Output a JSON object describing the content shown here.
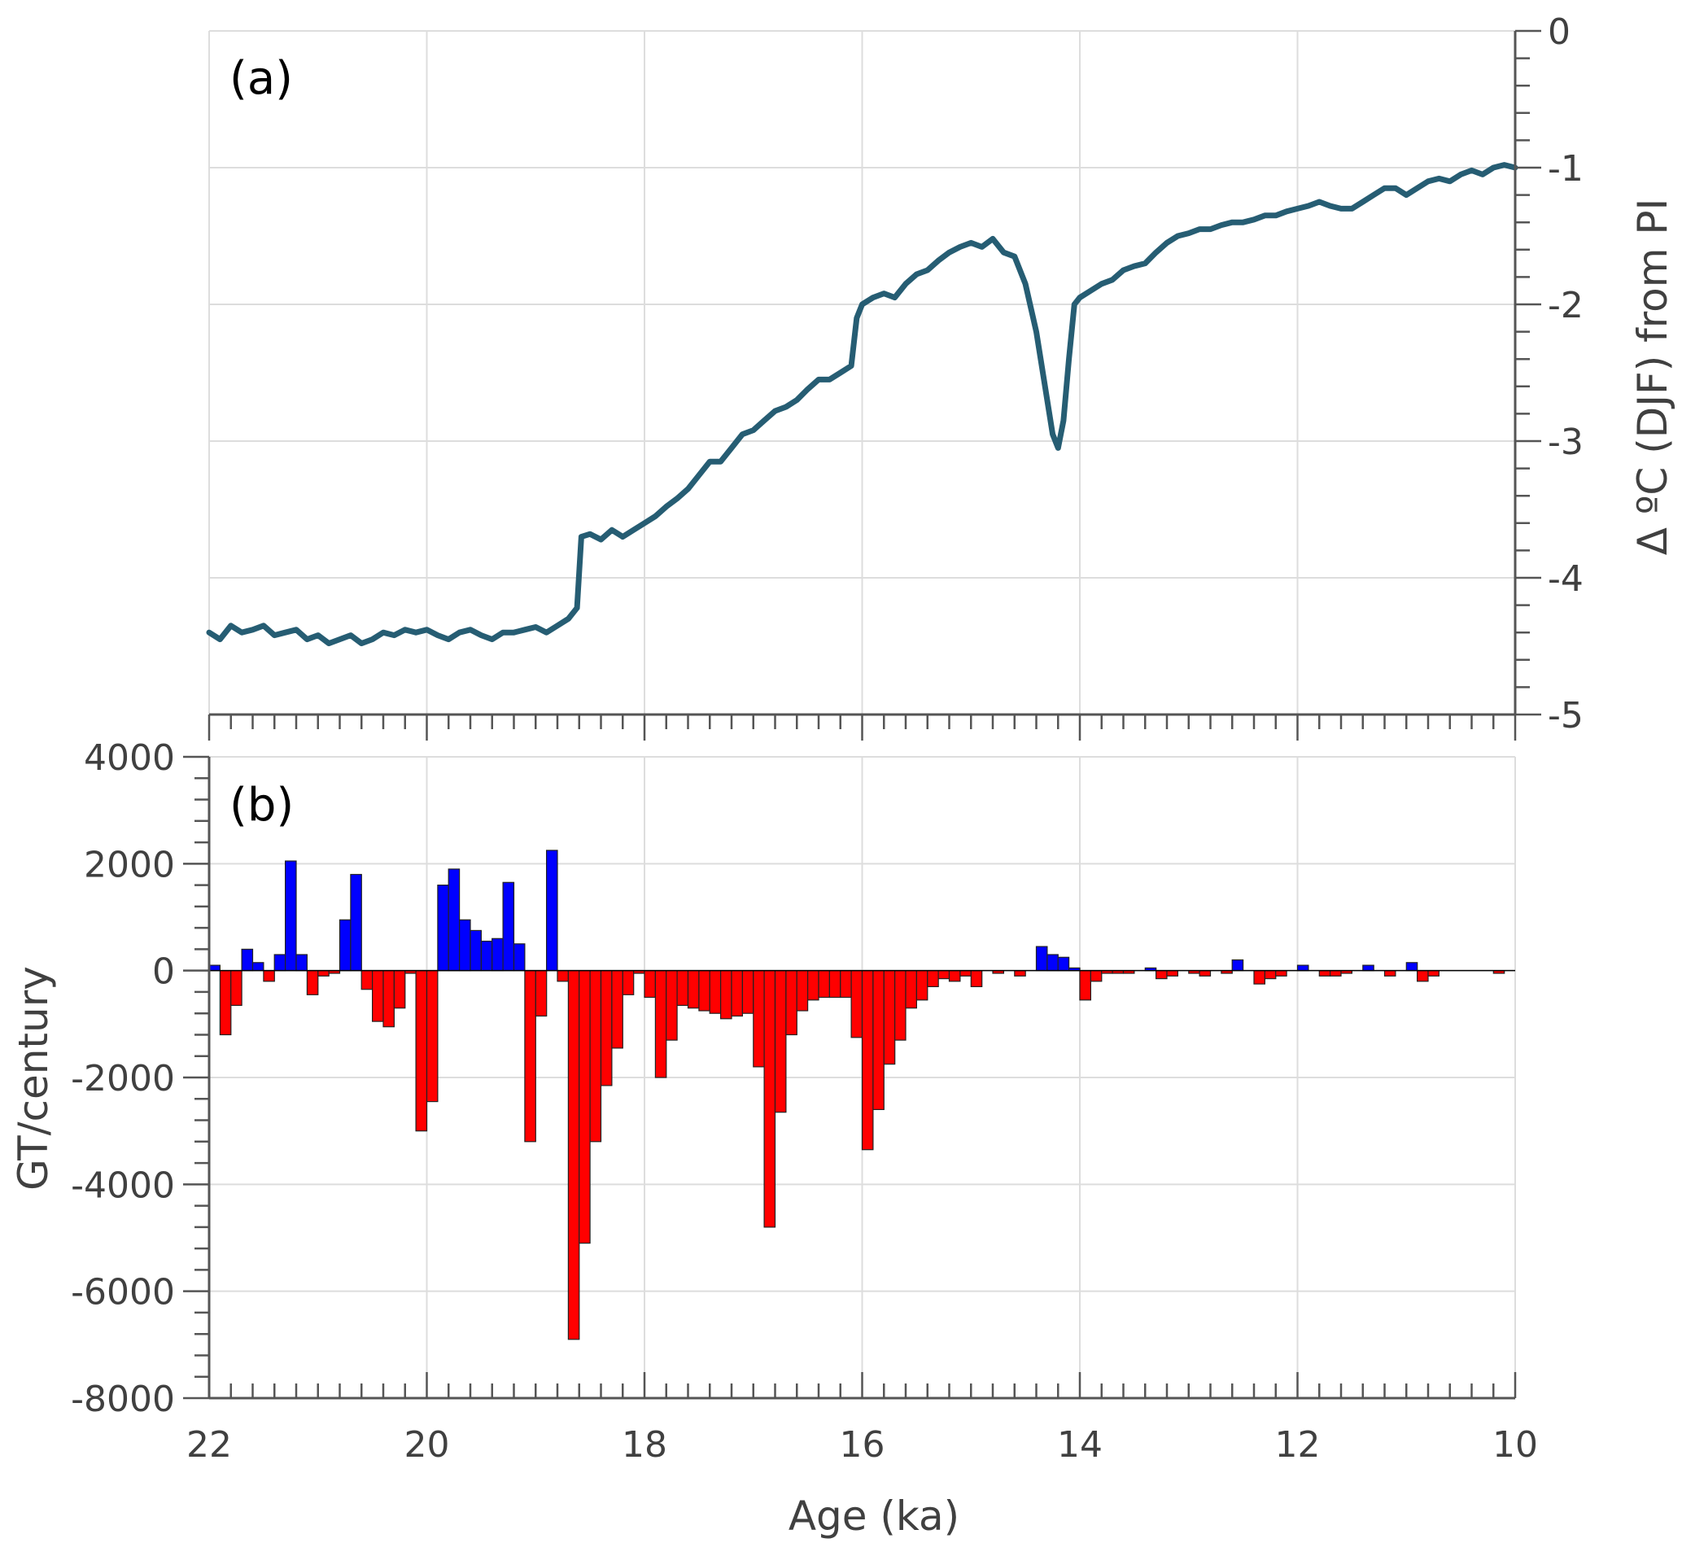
{
  "colors": {
    "line": "#265d73",
    "positive_bar": "#0000ff",
    "negative_bar": "#ff0000",
    "grid": "#dddddd",
    "axis": "#555555",
    "text": "#404040"
  },
  "chart_data": [
    {
      "type": "line",
      "panel_label": "(a)",
      "xlabel": "",
      "ylabel": "Δ ºC (DJF) from PI",
      "y_axis_side": "right",
      "xlim": [
        22,
        10
      ],
      "ylim": [
        -5,
        0
      ],
      "xticks": [
        22,
        20,
        18,
        16,
        14,
        12,
        10
      ],
      "yticks": [
        0,
        -1,
        -2,
        -3,
        -4,
        -5
      ],
      "ytick_labels": [
        "0",
        "-1",
        "-2",
        "-3",
        "-4",
        "-5"
      ],
      "grid": true,
      "x_reversed": true,
      "series": [
        {
          "x": [
            22.0,
            21.9,
            21.8,
            21.7,
            21.6,
            21.5,
            21.4,
            21.3,
            21.2,
            21.1,
            21.0,
            20.9,
            20.8,
            20.7,
            20.6,
            20.5,
            20.4,
            20.3,
            20.2,
            20.1,
            20.0,
            19.9,
            19.8,
            19.7,
            19.6,
            19.5,
            19.4,
            19.3,
            19.2,
            19.1,
            19.0,
            18.9,
            18.8,
            18.7,
            18.62,
            18.58,
            18.5,
            18.4,
            18.3,
            18.2,
            18.1,
            18.0,
            17.9,
            17.8,
            17.7,
            17.6,
            17.5,
            17.4,
            17.3,
            17.2,
            17.1,
            17.0,
            16.9,
            16.8,
            16.7,
            16.6,
            16.5,
            16.4,
            16.3,
            16.2,
            16.1,
            16.05,
            16.0,
            15.9,
            15.8,
            15.7,
            15.6,
            15.5,
            15.4,
            15.3,
            15.2,
            15.1,
            15.0,
            14.9,
            14.8,
            14.7,
            14.6,
            14.5,
            14.4,
            14.3,
            14.25,
            14.2,
            14.15,
            14.1,
            14.05,
            14.0,
            13.9,
            13.8,
            13.7,
            13.6,
            13.5,
            13.4,
            13.3,
            13.2,
            13.1,
            13.0,
            12.9,
            12.8,
            12.7,
            12.6,
            12.5,
            12.4,
            12.3,
            12.2,
            12.1,
            12.0,
            11.9,
            11.8,
            11.7,
            11.6,
            11.5,
            11.4,
            11.3,
            11.2,
            11.1,
            11.0,
            10.9,
            10.8,
            10.7,
            10.6,
            10.5,
            10.4,
            10.3,
            10.2,
            10.1,
            10.0
          ],
          "values": [
            -4.4,
            -4.45,
            -4.35,
            -4.4,
            -4.38,
            -4.35,
            -4.42,
            -4.4,
            -4.38,
            -4.45,
            -4.42,
            -4.48,
            -4.45,
            -4.42,
            -4.48,
            -4.45,
            -4.4,
            -4.42,
            -4.38,
            -4.4,
            -4.38,
            -4.42,
            -4.45,
            -4.4,
            -4.38,
            -4.42,
            -4.45,
            -4.4,
            -4.4,
            -4.38,
            -4.36,
            -4.4,
            -4.35,
            -4.3,
            -4.22,
            -3.7,
            -3.68,
            -3.72,
            -3.65,
            -3.7,
            -3.65,
            -3.6,
            -3.55,
            -3.48,
            -3.42,
            -3.35,
            -3.25,
            -3.15,
            -3.15,
            -3.05,
            -2.95,
            -2.92,
            -2.85,
            -2.78,
            -2.75,
            -2.7,
            -2.62,
            -2.55,
            -2.55,
            -2.5,
            -2.45,
            -2.1,
            -2.0,
            -1.95,
            -1.92,
            -1.95,
            -1.85,
            -1.78,
            -1.75,
            -1.68,
            -1.62,
            -1.58,
            -1.55,
            -1.58,
            -1.52,
            -1.62,
            -1.65,
            -1.85,
            -2.2,
            -2.7,
            -2.95,
            -3.05,
            -2.85,
            -2.4,
            -2.0,
            -1.95,
            -1.9,
            -1.85,
            -1.82,
            -1.75,
            -1.72,
            -1.7,
            -1.62,
            -1.55,
            -1.5,
            -1.48,
            -1.45,
            -1.45,
            -1.42,
            -1.4,
            -1.4,
            -1.38,
            -1.35,
            -1.35,
            -1.32,
            -1.3,
            -1.28,
            -1.25,
            -1.28,
            -1.3,
            -1.3,
            -1.25,
            -1.2,
            -1.15,
            -1.15,
            -1.2,
            -1.15,
            -1.1,
            -1.08,
            -1.1,
            -1.05,
            -1.02,
            -1.05,
            -1.0,
            -0.98,
            -1.0
          ]
        }
      ]
    },
    {
      "type": "bar",
      "panel_label": "(b)",
      "xlabel": "Age (ka)",
      "ylabel": "GT/century",
      "xlim": [
        22,
        10
      ],
      "ylim": [
        -8000,
        4000
      ],
      "xticks": [
        22,
        20,
        18,
        16,
        14,
        12,
        10
      ],
      "yticks": [
        4000,
        2000,
        0,
        -2000,
        -4000,
        -6000,
        -8000
      ],
      "xtick_labels": [
        "22",
        "20",
        "18",
        "16",
        "14",
        "12",
        "10"
      ],
      "ytick_labels": [
        "4000",
        "2000",
        "0",
        "-2000",
        "-4000",
        "-6000",
        "-8000"
      ],
      "grid": true,
      "x_reversed": true,
      "bar_width": 0.1,
      "bar_centers": [
        21.95,
        21.85,
        21.75,
        21.65,
        21.55,
        21.45,
        21.35,
        21.25,
        21.15,
        21.05,
        20.95,
        20.85,
        20.75,
        20.65,
        20.55,
        20.45,
        20.35,
        20.25,
        20.15,
        20.05,
        19.95,
        19.85,
        19.75,
        19.65,
        19.55,
        19.45,
        19.35,
        19.25,
        19.15,
        19.05,
        18.95,
        18.85,
        18.75,
        18.65,
        18.55,
        18.45,
        18.35,
        18.25,
        18.15,
        18.05,
        17.95,
        17.85,
        17.75,
        17.65,
        17.55,
        17.45,
        17.35,
        17.25,
        17.15,
        17.05,
        16.95,
        16.85,
        16.75,
        16.65,
        16.55,
        16.45,
        16.35,
        16.25,
        16.15,
        16.05,
        15.95,
        15.85,
        15.75,
        15.65,
        15.55,
        15.45,
        15.35,
        15.25,
        15.15,
        15.05,
        14.95,
        14.85,
        14.75,
        14.65,
        14.55,
        14.45,
        14.35,
        14.25,
        14.15,
        14.05,
        13.95,
        13.85,
        13.75,
        13.65,
        13.55,
        13.45,
        13.35,
        13.25,
        13.15,
        13.05,
        12.95,
        12.85,
        12.75,
        12.65,
        12.55,
        12.45,
        12.35,
        12.25,
        12.15,
        12.05,
        11.95,
        11.85,
        11.75,
        11.65,
        11.55,
        11.45,
        11.35,
        11.25,
        11.15,
        11.05,
        10.95,
        10.85,
        10.75,
        10.65,
        10.55,
        10.45,
        10.35,
        10.25,
        10.15,
        10.05
      ],
      "values": [
        100,
        -1200,
        -650,
        400,
        150,
        -200,
        300,
        2050,
        300,
        -450,
        -100,
        -50,
        950,
        1800,
        -350,
        -950,
        -1050,
        -700,
        -50,
        -3000,
        -2450,
        1600,
        1900,
        950,
        750,
        550,
        600,
        1650,
        500,
        -3200,
        -850,
        2250,
        -200,
        -6900,
        -5100,
        -3200,
        -2150,
        -1450,
        -450,
        -50,
        -500,
        -2000,
        -1300,
        -650,
        -700,
        -750,
        -800,
        -900,
        -850,
        -800,
        -1800,
        -4800,
        -2650,
        -1200,
        -750,
        -550,
        -500,
        -500,
        -500,
        -1250,
        -3350,
        -2600,
        -1750,
        -1300,
        -700,
        -550,
        -300,
        -150,
        -200,
        -100,
        -300,
        0,
        -50,
        0,
        -100,
        0,
        450,
        300,
        250,
        50,
        -550,
        -200,
        -50,
        -50,
        -50,
        0,
        50,
        -150,
        -100,
        0,
        -50,
        -100,
        0,
        -50,
        200,
        0,
        -250,
        -150,
        -100,
        0,
        100,
        0,
        -100,
        -100,
        -50,
        0,
        100,
        0,
        -100,
        0,
        150,
        -200,
        -100,
        0,
        0,
        0,
        0,
        0,
        -50,
        0
      ]
    }
  ]
}
